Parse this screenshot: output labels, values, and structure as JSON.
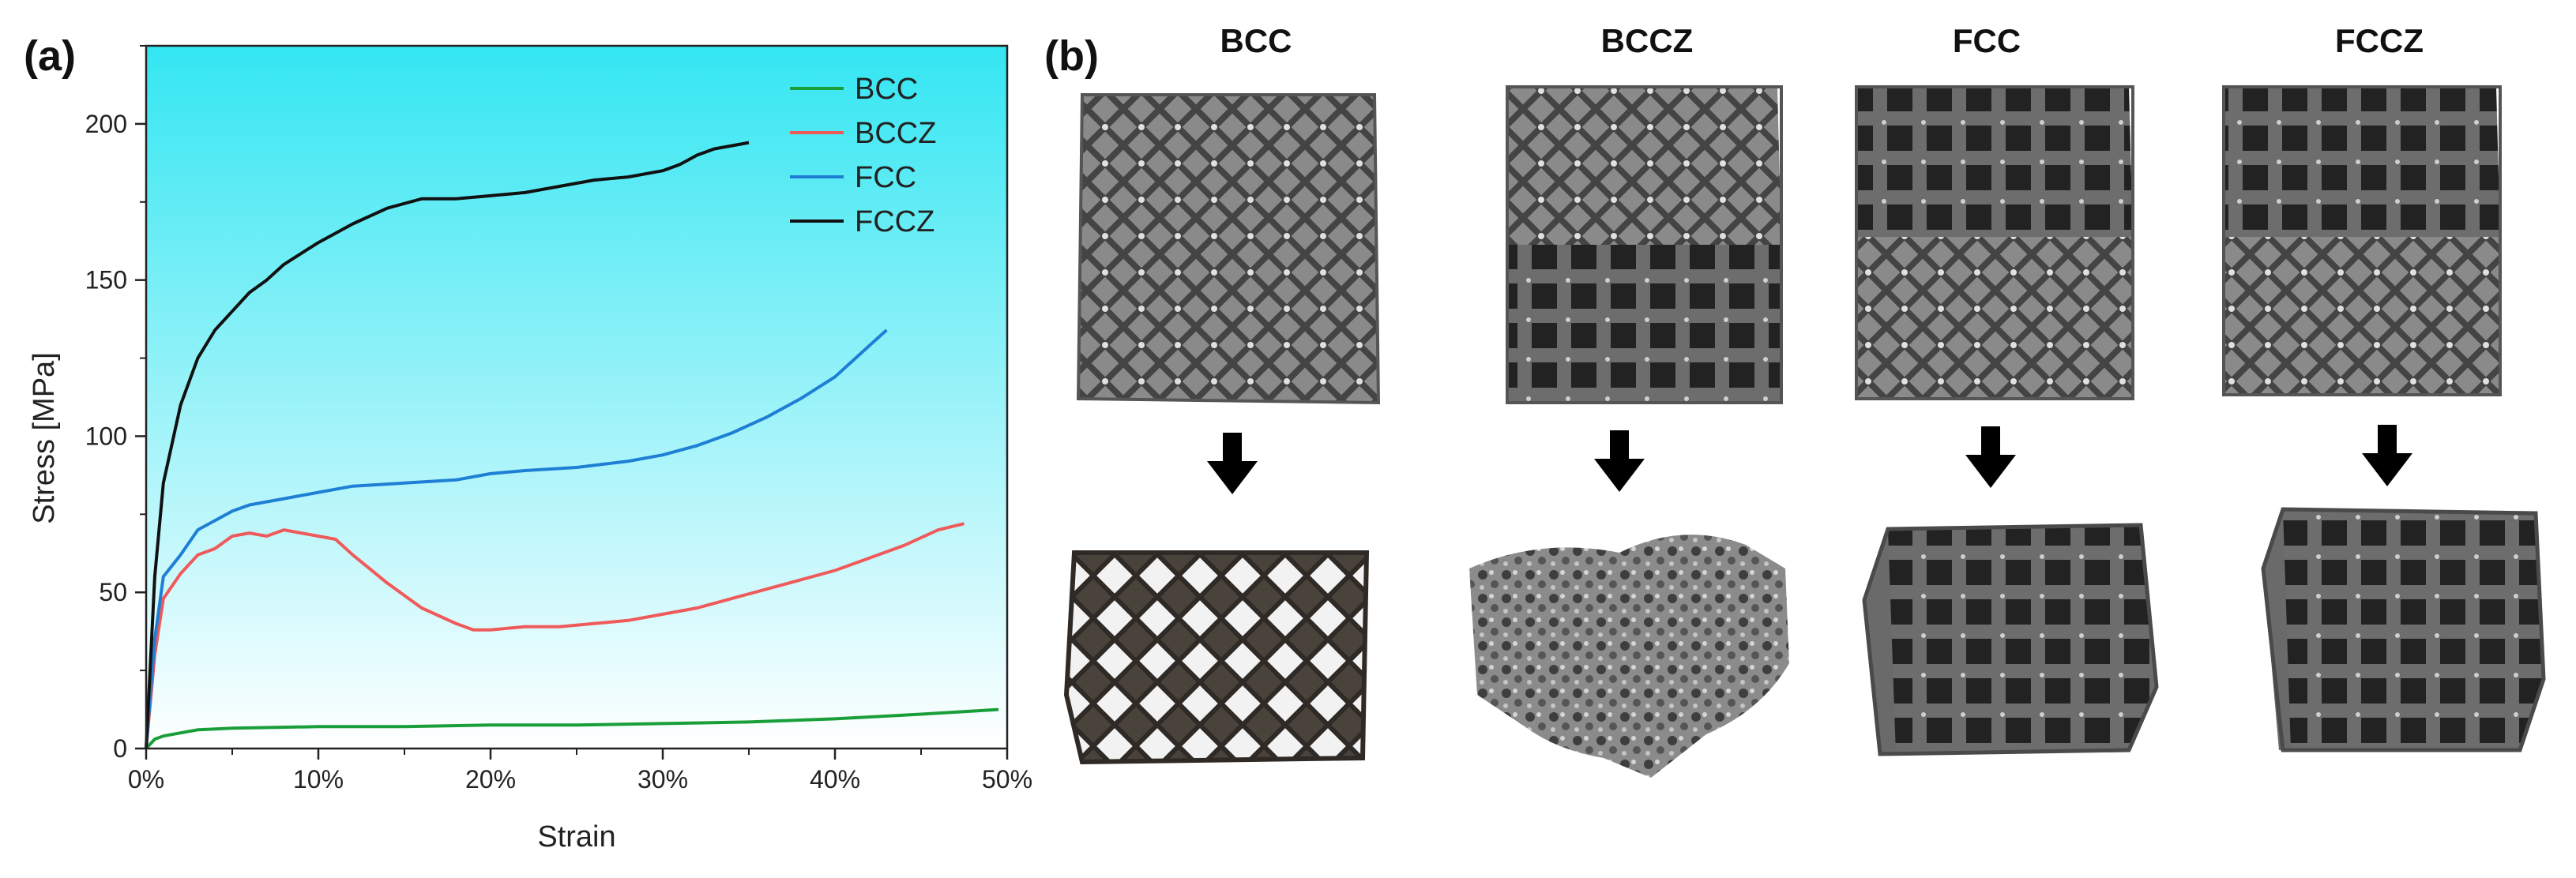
{
  "panel_a_label": "(a)",
  "panel_b_label": "(b)",
  "chart_data": {
    "type": "line",
    "xlabel": "Strain",
    "ylabel": "Stress [MPa]",
    "xlim": [
      0,
      50
    ],
    "ylim": [
      0,
      225
    ],
    "xticks": [
      0,
      10,
      20,
      30,
      40,
      50
    ],
    "xtick_labels": [
      "0%",
      "10%",
      "20%",
      "30%",
      "40%",
      "50%"
    ],
    "yticks": [
      0,
      50,
      100,
      150,
      200
    ],
    "ytick_labels": [
      "0",
      "50",
      "100",
      "150",
      "200"
    ],
    "legend_position": "top-right",
    "background": "gradient cyan-to-white",
    "series": [
      {
        "name": "BCC",
        "color": "#1a9e3a",
        "x": [
          0,
          0.5,
          1,
          2,
          3,
          5,
          10,
          15,
          20,
          25,
          30,
          35,
          40,
          45,
          49.5
        ],
        "y": [
          0,
          3,
          4,
          5,
          6,
          6.5,
          7,
          7,
          7.5,
          7.5,
          8,
          8.5,
          9.5,
          11,
          12.5
        ]
      },
      {
        "name": "BCCZ",
        "color": "#ef5a5a",
        "x": [
          0,
          0.5,
          1,
          2,
          3,
          4,
          5,
          6,
          7,
          8,
          9,
          10,
          11,
          12,
          14,
          16,
          18,
          19,
          20,
          22,
          24,
          26,
          28,
          30,
          32,
          34,
          36,
          38,
          40,
          42,
          44,
          46,
          47.5
        ],
        "y": [
          0,
          30,
          48,
          56,
          62,
          64,
          68,
          69,
          68,
          70,
          69,
          68,
          67,
          62,
          53,
          45,
          40,
          38,
          38,
          39,
          39,
          40,
          41,
          43,
          45,
          48,
          51,
          54,
          57,
          61,
          65,
          70,
          72
        ]
      },
      {
        "name": "FCC",
        "color": "#1e7fd4",
        "x": [
          0,
          0.5,
          1,
          2,
          3,
          4,
          5,
          6,
          8,
          10,
          12,
          15,
          18,
          20,
          22,
          25,
          28,
          30,
          32,
          34,
          36,
          38,
          40,
          41,
          42,
          43
        ],
        "y": [
          0,
          35,
          55,
          62,
          70,
          73,
          76,
          78,
          80,
          82,
          84,
          85,
          86,
          88,
          89,
          90,
          92,
          94,
          97,
          101,
          106,
          112,
          119,
          124,
          129,
          134
        ]
      },
      {
        "name": "FCCZ",
        "color": "#111111",
        "x": [
          0,
          0.5,
          1,
          2,
          3,
          4,
          5,
          6,
          7,
          8,
          10,
          12,
          14,
          16,
          18,
          20,
          22,
          24,
          26,
          28,
          30,
          31,
          32,
          33,
          34,
          35
        ],
        "y": [
          0,
          55,
          85,
          110,
          125,
          134,
          140,
          146,
          150,
          155,
          162,
          168,
          173,
          176,
          176,
          177,
          178,
          180,
          182,
          183,
          185,
          187,
          190,
          192,
          193,
          194
        ]
      }
    ]
  },
  "panel_b": {
    "titles": [
      "BCC",
      "BCCZ",
      "FCC",
      "FCCZ"
    ]
  }
}
